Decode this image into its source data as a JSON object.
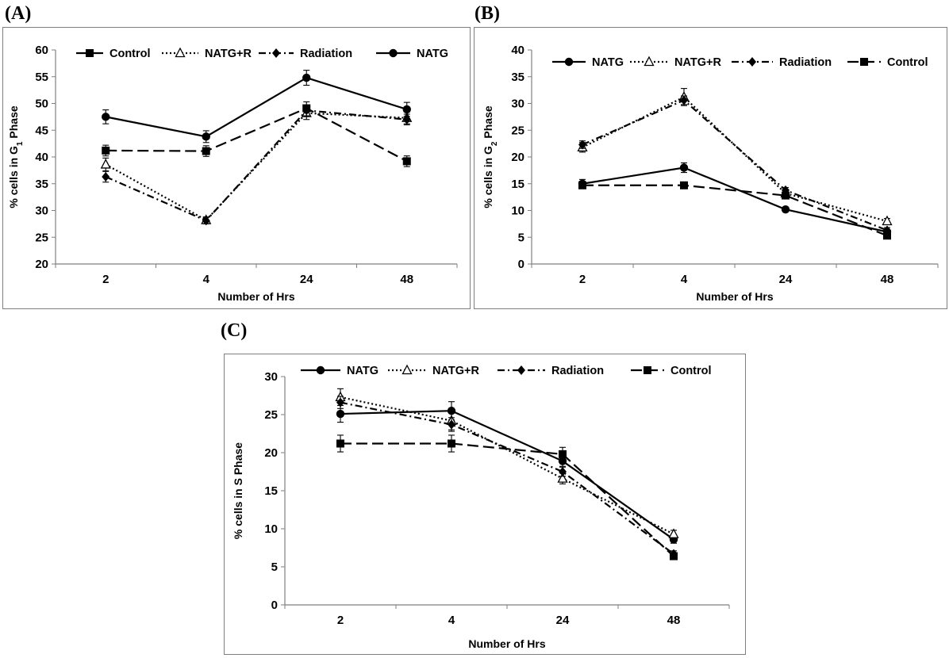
{
  "chart_data": [
    {
      "type": "line",
      "panel_label": "(A)",
      "categories": [
        "2",
        "4",
        "24",
        "48"
      ],
      "xlabel": "Number of Hrs",
      "ylabel_parts": [
        "% cells in G",
        "1",
        " Phase"
      ],
      "ylim": [
        20,
        60
      ],
      "yticks": [
        20,
        25,
        30,
        35,
        40,
        45,
        50,
        55,
        60
      ],
      "grid": false,
      "legend_position": "top",
      "series": [
        {
          "name": "Control",
          "style": "dashed",
          "marker": "square",
          "values": [
            41.2,
            41.1,
            49.1,
            39.2
          ],
          "errors": [
            1.0,
            1.0,
            1.2,
            1.0
          ]
        },
        {
          "name": "NATG+R",
          "style": "dotted",
          "marker": "triangle-open",
          "values": [
            38.6,
            28.2,
            48.2,
            47.3
          ],
          "errors": [
            1.2,
            0.6,
            1.2,
            1.1
          ]
        },
        {
          "name": "Radiation",
          "style": "dashdot",
          "marker": "diamond",
          "values": [
            36.3,
            28.1,
            48.7,
            47.0
          ],
          "errors": [
            1.0,
            0.6,
            1.0,
            1.0
          ]
        },
        {
          "name": "NATG",
          "style": "solid",
          "marker": "circle",
          "values": [
            47.5,
            43.8,
            54.8,
            48.9
          ],
          "errors": [
            1.3,
            1.1,
            1.4,
            1.3
          ]
        }
      ]
    },
    {
      "type": "line",
      "panel_label": "(B)",
      "categories": [
        "2",
        "4",
        "24",
        "48"
      ],
      "xlabel": "Number of Hrs",
      "ylabel_parts": [
        "% cells in G",
        "2",
        " Phase"
      ],
      "ylim": [
        0,
        40
      ],
      "yticks": [
        0,
        5,
        10,
        15,
        20,
        25,
        30,
        35,
        40
      ],
      "grid": false,
      "legend_position": "top",
      "series": [
        {
          "name": "NATG",
          "style": "solid",
          "marker": "circle",
          "values": [
            15.0,
            18.0,
            10.2,
            6.0
          ],
          "errors": [
            0.8,
            0.9,
            0.4,
            0.4
          ]
        },
        {
          "name": "NATG+R",
          "style": "dotted",
          "marker": "triangle-open",
          "values": [
            21.8,
            31.2,
            13.2,
            8.0
          ],
          "errors": [
            0.9,
            1.6,
            0.6,
            0.5
          ]
        },
        {
          "name": "Radiation",
          "style": "dashdot",
          "marker": "diamond",
          "values": [
            22.3,
            30.6,
            13.8,
            6.3
          ],
          "errors": [
            0.7,
            0.8,
            0.5,
            0.5
          ]
        },
        {
          "name": "Control",
          "style": "dashed",
          "marker": "square",
          "values": [
            14.7,
            14.7,
            12.8,
            5.3
          ],
          "errors": [
            0.5,
            0.5,
            0.5,
            0.4
          ]
        }
      ]
    },
    {
      "type": "line",
      "panel_label": "(C)",
      "categories": [
        "2",
        "4",
        "24",
        "48"
      ],
      "xlabel": "Number of Hrs",
      "ylabel_parts": [
        "% cells in S Phase",
        "",
        ""
      ],
      "ylim": [
        0,
        30
      ],
      "yticks": [
        0,
        5,
        10,
        15,
        20,
        25,
        30
      ],
      "grid": false,
      "legend_position": "top",
      "series": [
        {
          "name": "NATG",
          "style": "solid",
          "marker": "circle",
          "values": [
            25.1,
            25.5,
            18.9,
            8.6
          ],
          "errors": [
            1.1,
            1.2,
            0.7,
            0.5
          ]
        },
        {
          "name": "NATG+R",
          "style": "dotted",
          "marker": "triangle-open",
          "values": [
            27.3,
            24.2,
            16.6,
            9.3
          ],
          "errors": [
            1.1,
            1.2,
            0.7,
            0.5
          ]
        },
        {
          "name": "Radiation",
          "style": "dashdot",
          "marker": "diamond",
          "values": [
            26.6,
            23.7,
            17.5,
            6.7
          ],
          "errors": [
            0.8,
            0.9,
            0.6,
            0.4
          ]
        },
        {
          "name": "Control",
          "style": "dashed",
          "marker": "square",
          "values": [
            21.2,
            21.2,
            19.8,
            6.4
          ],
          "errors": [
            1.1,
            1.1,
            0.9,
            0.4
          ]
        }
      ]
    }
  ]
}
